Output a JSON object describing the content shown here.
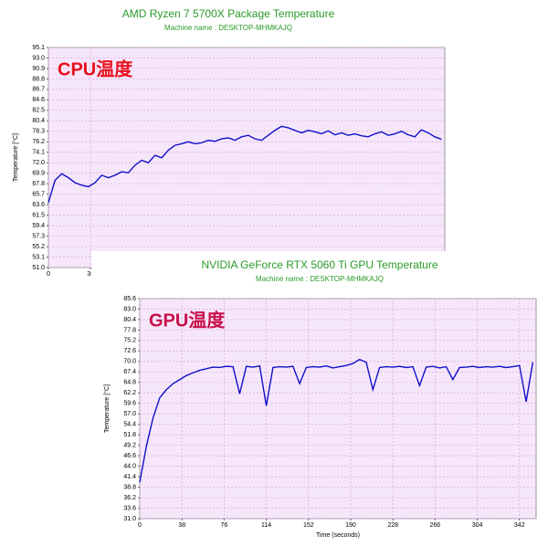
{
  "chart_data": [
    {
      "type": "line",
      "title": "AMD Ryzen 7 5700X Package Temperature",
      "subtitle": "Machine name : DESKTOP-MHMKAJQ",
      "y_label": "Temperature [°C]",
      "annotation": "CPU温度",
      "annotation_color": "#e8101e",
      "background": "#f6e6fa",
      "grid": true,
      "x": [
        0,
        6,
        12,
        18,
        24,
        30,
        36,
        42,
        48,
        54,
        60,
        66,
        72,
        78,
        84,
        90,
        96,
        102,
        108,
        114,
        120,
        126,
        132,
        138,
        144,
        150,
        156,
        162,
        168,
        174,
        180,
        186,
        192,
        198,
        204,
        210,
        216,
        222,
        228,
        234,
        240,
        246,
        252,
        258,
        264,
        270,
        276,
        282,
        288,
        294,
        300,
        306,
        312,
        318,
        324,
        330,
        336,
        342,
        348,
        354
      ],
      "series": [
        {
          "name": "CPU Package",
          "color": "#1010c8",
          "values": [
            64.0,
            68.5,
            69.8,
            69.0,
            68.0,
            67.5,
            67.2,
            68.0,
            69.5,
            69.0,
            69.5,
            70.2,
            70.0,
            71.5,
            72.5,
            72.0,
            73.5,
            73.0,
            74.5,
            75.5,
            75.8,
            76.2,
            75.8,
            76.0,
            76.5,
            76.3,
            76.8,
            77.0,
            76.5,
            77.2,
            77.5,
            76.8,
            76.5,
            77.5,
            78.5,
            79.3,
            79.0,
            78.5,
            78.0,
            78.5,
            78.2,
            77.8,
            78.4,
            77.6,
            78.0,
            77.5,
            77.8,
            77.4,
            77.2,
            77.8,
            78.2,
            77.5,
            77.8,
            78.3,
            77.6,
            77.2,
            78.6,
            78.0,
            77.2,
            76.7
          ]
        }
      ],
      "xlim": [
        0,
        357
      ],
      "xticks": [
        0,
        38
      ],
      "ylim": [
        51.0,
        95.1
      ],
      "yticks": [
        {
          "value": 51,
          "label": "51.0"
        },
        53.1,
        55.2,
        57.3,
        59.4,
        61.5,
        63.6,
        65.7,
        67.8,
        69.9,
        {
          "value": 72,
          "label": "72.0"
        },
        74.1,
        76.2,
        78.3,
        80.4,
        82.5,
        84.6,
        86.7,
        88.8,
        90.9,
        {
          "value": 93,
          "label": "93.0"
        },
        95.1
      ]
    },
    {
      "type": "line",
      "title": "NVIDIA GeForce RTX 5060 Ti GPU Temperature",
      "subtitle": "Machine name : DESKTOP-MHMKAJQ",
      "y_label": "Temperature [°C]",
      "x_label": "Time (seconds)",
      "annotation": "GPU温度",
      "annotation_color": "#c8104a",
      "background": "#f6e6fa",
      "grid": true,
      "x": [
        0,
        6,
        12,
        18,
        24,
        30,
        36,
        42,
        48,
        54,
        60,
        66,
        72,
        78,
        84,
        90,
        96,
        102,
        108,
        114,
        120,
        126,
        132,
        138,
        144,
        150,
        156,
        162,
        168,
        174,
        180,
        186,
        192,
        198,
        204,
        210,
        216,
        222,
        228,
        234,
        240,
        246,
        252,
        258,
        264,
        270,
        276,
        282,
        288,
        294,
        300,
        306,
        312,
        318,
        324,
        330,
        336,
        342,
        348,
        354
      ],
      "series": [
        {
          "name": "GPU Temperature",
          "color": "#1010c8",
          "values": [
            40.0,
            49.0,
            56.0,
            61.0,
            63.0,
            64.5,
            65.5,
            66.5,
            67.2,
            67.8,
            68.2,
            68.6,
            68.5,
            68.8,
            68.7,
            62.0,
            68.8,
            68.6,
            68.9,
            59.0,
            68.5,
            68.7,
            68.6,
            68.8,
            64.5,
            68.5,
            68.7,
            68.6,
            68.9,
            68.4,
            68.7,
            69.0,
            69.5,
            70.5,
            69.8,
            63.0,
            68.5,
            68.7,
            68.6,
            68.8,
            68.5,
            68.7,
            64.0,
            68.6,
            68.8,
            68.4,
            68.7,
            65.5,
            68.5,
            68.6,
            68.8,
            68.5,
            68.7,
            68.6,
            68.8,
            68.5,
            68.7,
            69.0,
            60.0,
            69.8
          ]
        }
      ],
      "xlim": [
        0,
        357
      ],
      "xticks": [
        0,
        38,
        76,
        114,
        152,
        190,
        228,
        266,
        304,
        342
      ],
      "ylim": [
        31.0,
        85.6
      ],
      "yticks": [
        {
          "value": 31,
          "label": "31.0"
        },
        33.6,
        36.2,
        38.8,
        41.4,
        {
          "value": 44,
          "label": "44.0"
        },
        46.6,
        49.2,
        51.8,
        54.4,
        {
          "value": 57,
          "label": "57.0"
        },
        59.6,
        62.2,
        64.8,
        67.4,
        {
          "value": 70,
          "label": "70.0"
        },
        72.6,
        75.2,
        77.8,
        80.4,
        {
          "value": 83,
          "label": "83.0"
        },
        85.6
      ]
    }
  ]
}
